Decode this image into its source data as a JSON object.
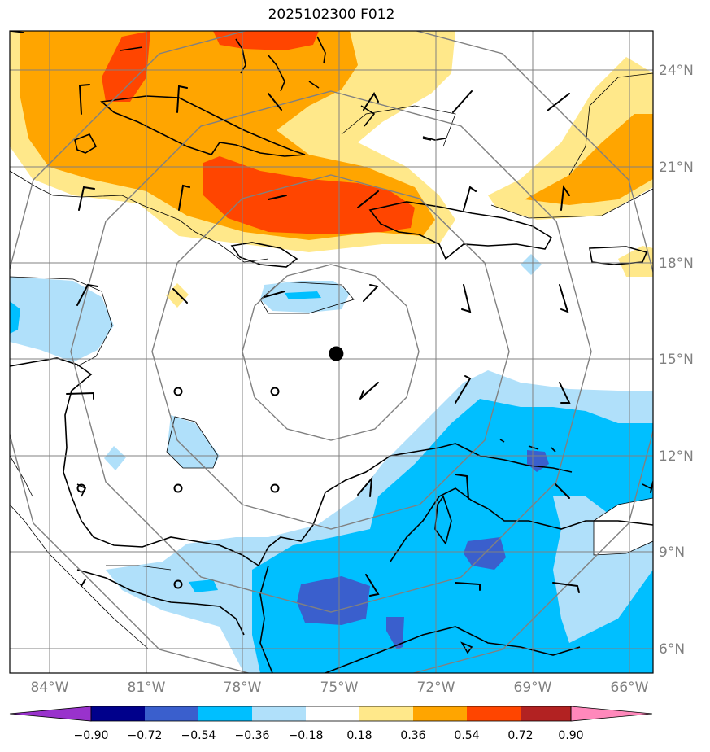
{
  "title": "2025102300 F012",
  "map": {
    "projection": "PlateCarree",
    "lon_range": [
      -85.25,
      -65.25
    ],
    "lat_range": [
      5.25,
      25.25
    ],
    "lat_ticks": [
      "24°N",
      "21°N",
      "18°N",
      "15°N",
      "12°N",
      "9°N",
      "6°N"
    ],
    "lon_ticks": [
      "84°W",
      "81°W",
      "78°W",
      "75°W",
      "72°W",
      "69°W",
      "66°W"
    ],
    "center_marker": {
      "lon": -75.1,
      "lat": 15.2
    },
    "range_rings": 4,
    "gridlines": true
  },
  "colorbar": {
    "orientation": "horizontal",
    "extend": "both",
    "levels": [
      "−0.90",
      "−0.72",
      "−0.54",
      "−0.36",
      "−0.18",
      "0.18",
      "0.36",
      "0.54",
      "0.72",
      "0.90"
    ],
    "colors": [
      "#9932cc",
      "#00008b",
      "#3a5fcd",
      "#00bfff",
      "#b0e0fa",
      "#ffffff",
      "#ffe88a",
      "#ffa500",
      "#ff4500",
      "#b22222",
      "#ff88bb"
    ]
  },
  "palette": {
    "land": "#000000",
    "grid": "#808080",
    "ring": "#808080"
  }
}
